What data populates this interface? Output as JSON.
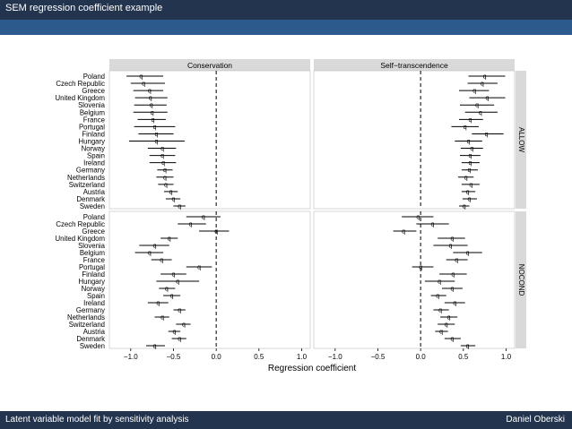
{
  "slide": {
    "title": "SEM regression coefficient example",
    "footer_left": "Latent variable model fit by sensitivity analysis",
    "footer_right": "Daniel Oberski"
  },
  "colors": {
    "header_bg": "#23344f",
    "subheader_bg": "#2c5a8c",
    "strip_bg": "#d9d9d9",
    "plot_bg": "#ffffff",
    "ink": "#000000"
  },
  "chart_data": {
    "type": "scatter",
    "subtype": "dot-and-whisker (point estimate with confidence interval), faceted",
    "xlabel": "Regression coefficient",
    "xlim": [
      -1.25,
      1.1
    ],
    "x_ticks": [
      -1.0,
      -0.5,
      0.0,
      0.5,
      1.0
    ],
    "x_tick_labels": [
      "−1.0",
      "−0.5",
      "0.0",
      "0.5",
      "1.0"
    ],
    "reference_line": 0,
    "point_marker": "q",
    "columns": [
      "Conservation",
      "Self−transcendence"
    ],
    "rows": [
      "ALLOW",
      "NOCOND"
    ],
    "countries": [
      "Poland",
      "Czech Republic",
      "Greece",
      "United Kingdom",
      "Slovenia",
      "Belgium",
      "France",
      "Portugal",
      "Finland",
      "Hungary",
      "Norway",
      "Spain",
      "Ireland",
      "Germany",
      "Netherlands",
      "Switzerland",
      "Austria",
      "Denmark",
      "Sweden"
    ],
    "panels": [
      {
        "column": "Conservation",
        "row": "ALLOW",
        "estimates": [
          -0.88,
          -0.85,
          -0.78,
          -0.77,
          -0.76,
          -0.75,
          -0.74,
          -0.72,
          -0.7,
          -0.7,
          -0.63,
          -0.63,
          -0.62,
          -0.6,
          -0.6,
          -0.59,
          -0.53,
          -0.5,
          -0.43
        ],
        "lower": [
          -1.05,
          -1.0,
          -0.97,
          -0.95,
          -0.96,
          -0.97,
          -0.92,
          -0.96,
          -0.91,
          -1.02,
          -0.8,
          -0.78,
          -0.78,
          -0.69,
          -0.7,
          -0.68,
          -0.61,
          -0.59,
          -0.5
        ],
        "upper": [
          -0.62,
          -0.6,
          -0.62,
          -0.57,
          -0.58,
          -0.57,
          -0.59,
          -0.48,
          -0.5,
          -0.37,
          -0.47,
          -0.48,
          -0.47,
          -0.51,
          -0.5,
          -0.5,
          -0.45,
          -0.42,
          -0.36
        ]
      },
      {
        "column": "Self−transcendence",
        "row": "ALLOW",
        "estimates": [
          0.75,
          0.72,
          0.63,
          0.78,
          0.66,
          0.7,
          0.58,
          0.52,
          0.77,
          0.56,
          0.6,
          0.58,
          0.58,
          0.57,
          0.53,
          0.59,
          0.55,
          0.57,
          0.51
        ],
        "lower": [
          0.56,
          0.55,
          0.45,
          0.57,
          0.46,
          0.52,
          0.45,
          0.36,
          0.6,
          0.4,
          0.47,
          0.46,
          0.48,
          0.48,
          0.44,
          0.48,
          0.48,
          0.49,
          0.45
        ],
        "upper": [
          0.99,
          0.9,
          0.8,
          0.99,
          0.86,
          0.9,
          0.73,
          0.68,
          0.97,
          0.72,
          0.73,
          0.7,
          0.69,
          0.67,
          0.62,
          0.69,
          0.64,
          0.66,
          0.57
        ]
      },
      {
        "column": "Conservation",
        "row": "NOCOND",
        "estimates": [
          -0.15,
          -0.3,
          0.0,
          -0.55,
          -0.72,
          -0.78,
          -0.64,
          -0.2,
          -0.5,
          -0.45,
          -0.58,
          -0.52,
          -0.68,
          -0.43,
          -0.63,
          -0.38,
          -0.49,
          -0.43,
          -0.72
        ],
        "lower": [
          -0.35,
          -0.45,
          -0.2,
          -0.65,
          -0.9,
          -0.95,
          -0.76,
          -0.35,
          -0.65,
          -0.7,
          -0.67,
          -0.62,
          -0.8,
          -0.5,
          -0.72,
          -0.47,
          -0.56,
          -0.52,
          -0.82
        ],
        "upper": [
          0.05,
          -0.12,
          0.15,
          -0.45,
          -0.55,
          -0.62,
          -0.52,
          -0.05,
          -0.35,
          -0.2,
          -0.48,
          -0.42,
          -0.56,
          -0.36,
          -0.55,
          -0.3,
          -0.42,
          -0.35,
          -0.6
        ]
      },
      {
        "column": "Self−transcendence",
        "row": "NOCOND",
        "estimates": [
          -0.03,
          0.14,
          -0.2,
          0.37,
          0.35,
          0.55,
          0.42,
          0.0,
          0.38,
          0.22,
          0.37,
          0.2,
          0.4,
          0.23,
          0.33,
          0.3,
          0.24,
          0.37,
          0.55
        ],
        "lower": [
          -0.22,
          -0.05,
          -0.32,
          0.2,
          0.15,
          0.38,
          0.3,
          -0.1,
          0.22,
          0.05,
          0.25,
          0.12,
          0.28,
          0.15,
          0.23,
          0.2,
          0.17,
          0.28,
          0.47
        ],
        "upper": [
          0.15,
          0.33,
          -0.05,
          0.52,
          0.55,
          0.72,
          0.55,
          0.15,
          0.54,
          0.4,
          0.49,
          0.3,
          0.52,
          0.33,
          0.43,
          0.4,
          0.32,
          0.47,
          0.64
        ]
      }
    ]
  }
}
